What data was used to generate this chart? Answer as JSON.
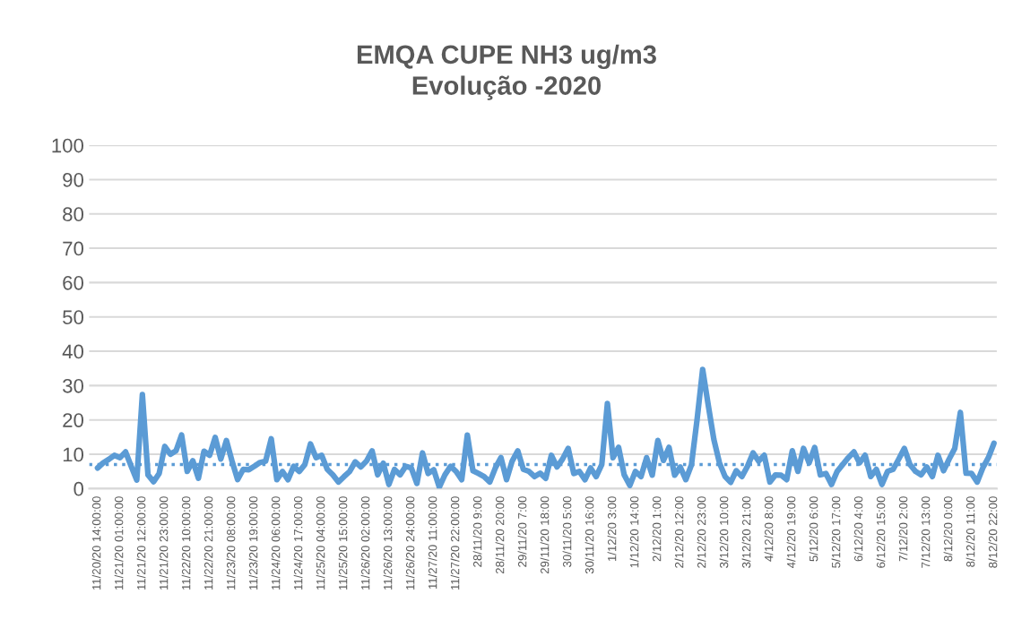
{
  "chart_data": {
    "type": "line",
    "title": "EMQA CUPE NH3 ug/m3\nEvolução -2020",
    "categories": [
      "11/20/20 14:00:00",
      null,
      null,
      null,
      "11/21/20 01:00:00",
      null,
      null,
      null,
      "11/21/20 12:00:00",
      null,
      null,
      null,
      "11/21/20 23:00:00",
      null,
      null,
      null,
      "11/22/20 10:00:00",
      null,
      null,
      null,
      "11/22/20 21:00:00",
      null,
      null,
      null,
      "11/23/20 08:00:00",
      null,
      null,
      null,
      "11/23/20 19:00:00",
      null,
      null,
      null,
      "11/24/20 06:00:00",
      null,
      null,
      null,
      "11/24/20 17:00:00",
      null,
      null,
      null,
      "11/25/20 04:00:00",
      null,
      null,
      null,
      "11/25/20 15:00:00",
      null,
      null,
      null,
      "11/26/20 02:00:00",
      null,
      null,
      null,
      "11/26/20 13:00:00",
      null,
      null,
      null,
      "11/26/20 24:00:00",
      null,
      null,
      null,
      "11/27/20 11:00:00",
      null,
      null,
      null,
      "11/27/20 22:00:00",
      null,
      null,
      null,
      "28/11/20 9:00",
      null,
      null,
      null,
      "28/11/20 20:00",
      null,
      null,
      null,
      "29/11/20 7:00",
      null,
      null,
      null,
      "29/11/20 18:00",
      null,
      null,
      null,
      "30/11/20 5:00",
      null,
      null,
      null,
      "30/11/20 16:00",
      null,
      null,
      null,
      "1/12/20 3:00",
      null,
      null,
      null,
      "1/12/20 14:00",
      null,
      null,
      null,
      "2/12/20 1:00",
      null,
      null,
      null,
      "2/12/20 12:00",
      null,
      null,
      null,
      "2/12/20 23:00",
      null,
      null,
      null,
      "3/12/20 10:00",
      null,
      null,
      null,
      "3/12/20 21:00",
      null,
      null,
      null,
      "4/12/20 8:00",
      null,
      null,
      null,
      "4/12/20 19:00",
      null,
      null,
      null,
      "5/12/20 6:00",
      null,
      null,
      null,
      "5/12/20 17:00",
      null,
      null,
      null,
      "6/12/20 4:00",
      null,
      null,
      null,
      "6/12/20 15:00",
      null,
      null,
      null,
      "7/12/20 2:00",
      null,
      null,
      null,
      "7/12/20 13:00",
      null,
      null,
      null,
      "8/12/20 0:00",
      null,
      null,
      null,
      "8/12/20 11:00",
      null,
      null,
      null,
      "8/12/20 22:00"
    ],
    "series": [
      {
        "color": "#5b9bd5",
        "values": [
          6,
          7.5,
          8.5,
          9.7,
          9,
          10.7,
          6.5,
          2.5,
          27.4,
          4,
          2,
          4.4,
          12.3,
          10,
          11,
          15.6,
          5,
          8.1,
          3,
          10.9,
          9.7,
          14.9,
          8.6,
          14,
          8,
          2.6,
          5.6,
          5.5,
          6.5,
          7.6,
          8,
          14.5,
          2.6,
          5,
          2.6,
          6.5,
          5,
          7,
          13,
          9,
          9.7,
          5.6,
          4,
          1.9,
          3.5,
          5,
          7.8,
          6.3,
          8,
          11,
          4,
          7.4,
          1.2,
          5.6,
          4,
          6.5,
          6,
          1.5,
          10.4,
          4.4,
          5.5,
          0.4,
          4,
          6.5,
          5,
          2.6,
          15.6,
          5.2,
          4.4,
          3.5,
          1.9,
          6,
          9,
          2.6,
          8,
          11,
          5.6,
          5,
          3.5,
          4.5,
          3,
          9.7,
          6.3,
          8.6,
          11.7,
          4.4,
          5,
          2.6,
          6,
          3.5,
          7,
          24.8,
          9,
          12,
          4,
          0.9,
          5,
          3.5,
          9,
          3.9,
          14,
          8.2,
          12,
          3.9,
          6.3,
          2.6,
          6.9,
          20,
          34.7,
          24.3,
          14.3,
          7.5,
          3.5,
          1.8,
          5.2,
          3.5,
          6.5,
          10.4,
          8,
          9.7,
          1.9,
          4,
          3.9,
          2.6,
          11,
          5,
          11.7,
          7.5,
          12,
          4,
          4.4,
          1.2,
          5,
          7,
          9,
          10.7,
          7.5,
          9.7,
          3.5,
          5.6,
          1.2,
          5,
          5.6,
          8.6,
          11.7,
          7,
          5,
          4,
          6.3,
          3.5,
          9.7,
          5.2,
          8.6,
          11.7,
          22.2,
          4.5,
          4.4,
          1.9,
          6,
          9,
          13.2
        ]
      }
    ],
    "ylim": [
      0,
      100
    ],
    "yticks": [
      0,
      10,
      20,
      30,
      40,
      50,
      60,
      70,
      80,
      90,
      100
    ],
    "ref_lines": [
      {
        "axis": "y",
        "value": 7,
        "color": "#5b9bd5",
        "line_style": "dotted"
      }
    ],
    "grid": "y",
    "legend": false,
    "marker": "none",
    "line_style": "solid"
  }
}
